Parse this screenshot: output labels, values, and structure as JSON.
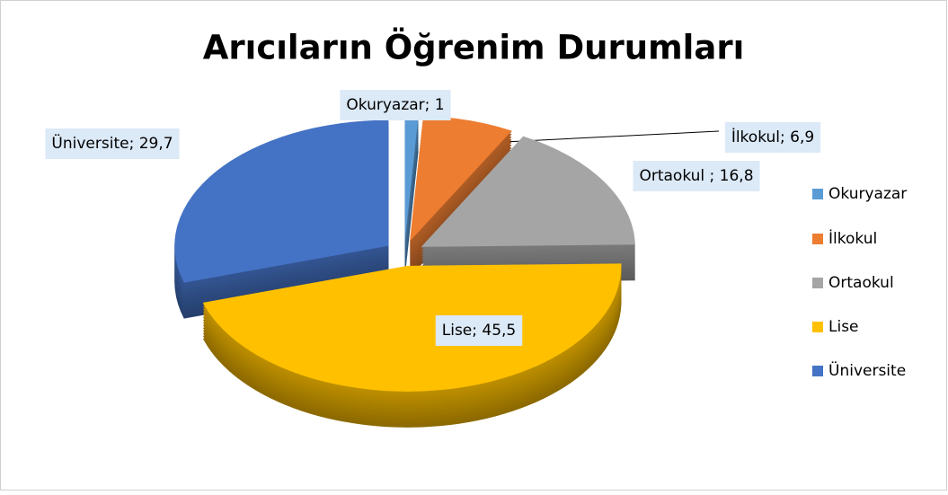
{
  "chart_data": {
    "type": "pie",
    "title": "Arıcıların Öğrenim Durumları",
    "categories": [
      "Okuryazar",
      "İlkokul",
      "Ortaokul",
      "Lise",
      "Üniversite"
    ],
    "values": [
      1,
      6.9,
      16.8,
      45.5,
      29.7
    ],
    "value_labels": [
      "Okuryazar; 1",
      "İlkokul; 6,9",
      "Ortaokul ; 16,8",
      "Lise; 45,5",
      "Üniversite; 29,7"
    ],
    "colors": [
      "#5b9bd5",
      "#ed7d31",
      "#a5a5a5",
      "#ffc000",
      "#4472c4"
    ],
    "legend": "right"
  }
}
